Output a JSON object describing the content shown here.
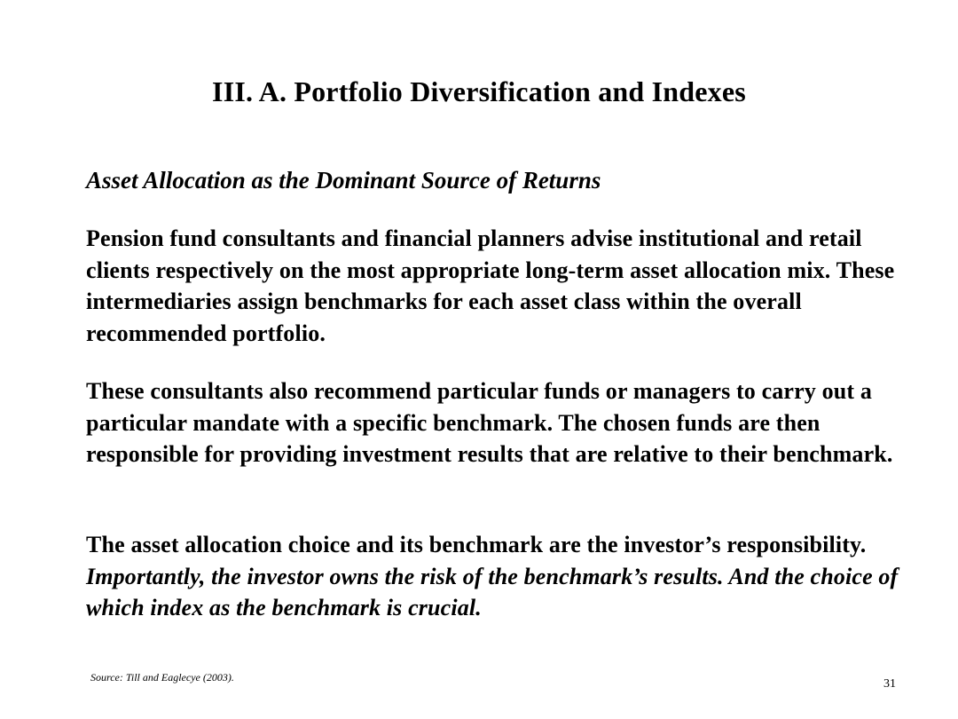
{
  "slide": {
    "title": "III.  A.  Portfolio Diversification and Indexes",
    "subtitle": "Asset Allocation as the Dominant Source of Returns",
    "paragraph1": "Pension fund consultants and financial planners advise institutional and retail clients respectively on the most appropriate long-term asset allocation mix.  These intermediaries assign benchmarks for each asset class within the overall recommended portfolio.",
    "paragraph2": "These consultants also recommend particular funds or managers to carry out a particular mandate with a specific benchmark.  The chosen funds are then responsible for providing investment results that are relative to their benchmark.",
    "paragraph3_plain": "The asset allocation choice and its benchmark are the investor’s responsibility. ",
    "paragraph3_italic": "Importantly, the investor owns the risk of the benchmark’s results.  And the choice of which index as the benchmark is crucial.",
    "source": "Source:  Till and Eaglecye (2003).",
    "page_number": "31"
  }
}
